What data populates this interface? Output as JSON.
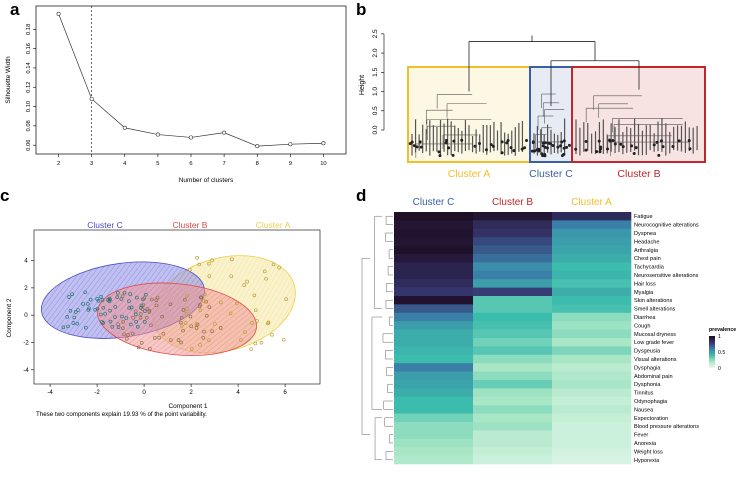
{
  "panels": {
    "a": "a",
    "b": "b",
    "c": "c",
    "d": "d"
  },
  "chart_data": [
    {
      "panel": "a",
      "type": "line",
      "title": "",
      "xlabel": "Number of clusters",
      "ylabel": "Silhouette Width",
      "x": [
        2,
        3,
        4,
        5,
        6,
        7,
        8,
        9,
        10
      ],
      "values": [
        0.196,
        0.108,
        0.078,
        0.071,
        0.068,
        0.073,
        0.059,
        0.061,
        0.062
      ],
      "ylim": [
        0.055,
        0.2
      ],
      "xlim": [
        1.5,
        10.5
      ],
      "xticks": [
        "2",
        "3",
        "4",
        "5",
        "6",
        "7",
        "8",
        "9",
        "10"
      ],
      "yticks": [
        "0.06",
        "0.08",
        "0.10",
        "0.12",
        "0.14",
        "0.16",
        "0.18"
      ],
      "ytick_values": [
        0.06,
        0.08,
        0.1,
        0.12,
        0.14,
        0.16,
        0.18
      ],
      "reference_line_x": 3,
      "grid": false
    },
    {
      "panel": "b",
      "type": "dendrogram",
      "ylabel": "Height",
      "ylim": [
        0,
        2.6
      ],
      "yticks": [
        "0.0",
        "0.5",
        "1.0",
        "1.5",
        "2.0",
        "2.5"
      ],
      "ytick_values": [
        0,
        0.5,
        1.0,
        1.5,
        2.0,
        2.5
      ],
      "root_height": 2.3,
      "cluster_merge_heights": {
        "A": 1.0,
        "C": 0.62,
        "B": 1.05,
        "BC": 1.8
      },
      "clusters": [
        {
          "name": "Cluster A",
          "color": "#f3bd2b",
          "fill": "#fdf8e4"
        },
        {
          "name": "Cluster C",
          "color": "#3b5ea6",
          "fill": "#e7ebf4"
        },
        {
          "name": "Cluster B",
          "color": "#c0272d",
          "fill": "#f8e3e3"
        }
      ]
    },
    {
      "panel": "c",
      "type": "scatter",
      "xlabel": "Component 1",
      "ylabel": "Component 2",
      "caption": "These two components explain 19.93 % of the point variability.",
      "xlim": [
        -4.6,
        7.4
      ],
      "ylim": [
        -4.6,
        5.8
      ],
      "xticks": [
        "-4",
        "-2",
        "0",
        "2",
        "4",
        "6"
      ],
      "xtick_values": [
        -4,
        -2,
        0,
        2,
        4,
        6
      ],
      "yticks": [
        "-4",
        "-2",
        "0",
        "2",
        "4"
      ],
      "ytick_values": [
        -4,
        -2,
        0,
        2,
        4
      ],
      "clusters": [
        {
          "name": "Cluster C",
          "color": "#4a4ac6",
          "fill": "#8c8ce6",
          "cx": -0.9,
          "cy": 1.1,
          "rx": 3.5,
          "ry": 2.7,
          "rot": -8
        },
        {
          "name": "Cluster B",
          "color": "#e04848",
          "fill": "#f09a9a",
          "cx": 1.4,
          "cy": -0.3,
          "rx": 3.4,
          "ry": 2.6,
          "rot": 6
        },
        {
          "name": "Cluster A",
          "color": "#e8d04a",
          "fill": "#f4e7a4",
          "cx": 3.4,
          "cy": 0.8,
          "rx": 3.1,
          "ry": 3.4,
          "rot": -15
        }
      ]
    },
    {
      "panel": "d",
      "type": "heatmap",
      "columns": [
        "Cluster C",
        "Cluster B",
        "Cluster A"
      ],
      "column_colors": [
        "#3b5ea6",
        "#c0272d",
        "#f3bd2b"
      ],
      "rows": [
        "Fatigue",
        "Neurocognitive alterations",
        "Dyspnea",
        "Headache",
        "Arthralgia",
        "Chest pain",
        "Tachycardia",
        "Neurosensitive alterations",
        "Hair loss",
        "Myalgia",
        "Skin alterations",
        "Smell alterations",
        "Diarrhea",
        "Cough",
        "Mucosal dryness",
        "Low grade fever",
        "Dysgeusia",
        "Visual alterations",
        "Dysphagia",
        "Abdominal pain",
        "Dysphonia",
        "Tinnitus",
        "Odynophagia",
        "Nausea",
        "Expectoration",
        "Blood pressure alterations",
        "Fever",
        "Anorexia",
        "Weight loss",
        "Hyporexia"
      ],
      "values": [
        [
          0.98,
          0.95,
          0.85
        ],
        [
          0.95,
          0.85,
          0.6
        ],
        [
          0.96,
          0.82,
          0.52
        ],
        [
          0.95,
          0.75,
          0.5
        ],
        [
          0.97,
          0.7,
          0.48
        ],
        [
          0.93,
          0.65,
          0.45
        ],
        [
          0.88,
          0.55,
          0.4
        ],
        [
          0.88,
          0.6,
          0.42
        ],
        [
          0.84,
          0.5,
          0.38
        ],
        [
          0.8,
          0.78,
          0.45
        ],
        [
          0.96,
          0.35,
          0.4
        ],
        [
          0.7,
          0.35,
          0.38
        ],
        [
          0.6,
          0.4,
          0.25
        ],
        [
          0.5,
          0.38,
          0.22
        ],
        [
          0.45,
          0.35,
          0.25
        ],
        [
          0.45,
          0.3,
          0.2
        ],
        [
          0.42,
          0.35,
          0.28
        ],
        [
          0.4,
          0.25,
          0.2
        ],
        [
          0.6,
          0.2,
          0.15
        ],
        [
          0.5,
          0.25,
          0.18
        ],
        [
          0.48,
          0.32,
          0.2
        ],
        [
          0.45,
          0.22,
          0.15
        ],
        [
          0.4,
          0.2,
          0.12
        ],
        [
          0.4,
          0.25,
          0.15
        ],
        [
          0.3,
          0.2,
          0.12
        ],
        [
          0.25,
          0.22,
          0.1
        ],
        [
          0.25,
          0.15,
          0.1
        ],
        [
          0.22,
          0.15,
          0.1
        ],
        [
          0.2,
          0.12,
          0.08
        ],
        [
          0.18,
          0.1,
          0.06
        ]
      ],
      "legend": {
        "title": "prevalence",
        "ticks": [
          "1",
          "0.5",
          "0"
        ],
        "tick_values": [
          1,
          0.5,
          0
        ],
        "colors": [
          "#1c0b1f",
          "#35356e",
          "#3a7fa8",
          "#3cbcac",
          "#a8e6c6",
          "#eef9ef"
        ]
      }
    }
  ]
}
